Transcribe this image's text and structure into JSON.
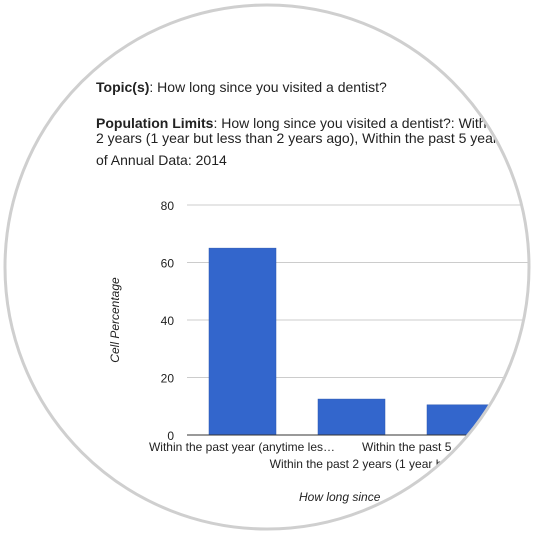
{
  "topics": {
    "label": "Topic(s)",
    "value": ": How long since you visited a dentist?"
  },
  "population_limits": {
    "label": "Population Limits",
    "line1": ": How long since you visited a dentist?: With",
    "line2": "2 years (1 year but less than 2 years ago), Within the past 5 year",
    "line3": "of Annual Data: 2014"
  },
  "chart_data": {
    "type": "bar",
    "categories": [
      "Within the past year (anytime les…",
      "Within the past 2 years (1 year b",
      "Within the past 5"
    ],
    "values": [
      65,
      12.5,
      10.5
    ],
    "xlabel": "How long since",
    "ylabel": "Cell Percentage",
    "ylim": [
      0,
      80
    ],
    "yticks": [
      0,
      20,
      40,
      60,
      80
    ],
    "grid": true,
    "bar_color": "#3366cc",
    "grid_color": "#cccccc",
    "axis_color": "#333333"
  },
  "frame": {
    "ring_color": "#cfcfcf"
  }
}
